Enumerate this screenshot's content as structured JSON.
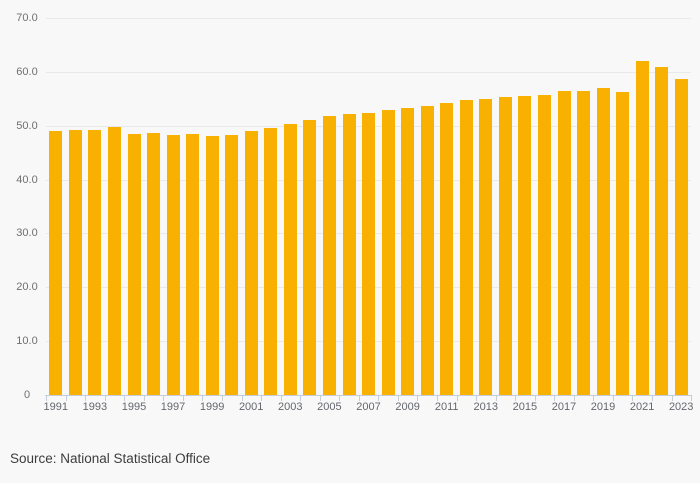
{
  "chart_data": {
    "type": "bar",
    "title": "",
    "xlabel": "",
    "ylabel": "",
    "ylim": [
      0,
      70
    ],
    "grid": true,
    "legend": "none",
    "bar_color": "#f9b101",
    "categories": [
      1991,
      1992,
      1993,
      1994,
      1995,
      1996,
      1997,
      1998,
      1999,
      2000,
      2001,
      2002,
      2003,
      2004,
      2005,
      2006,
      2007,
      2008,
      2009,
      2010,
      2011,
      2012,
      2013,
      2014,
      2015,
      2016,
      2017,
      2018,
      2019,
      2020,
      2021,
      2022,
      2023
    ],
    "values": [
      49.1,
      49.2,
      49.2,
      49.8,
      48.5,
      48.7,
      48.3,
      48.4,
      48.1,
      48.2,
      49.0,
      49.5,
      50.4,
      51.1,
      51.8,
      52.2,
      52.4,
      52.9,
      53.3,
      53.7,
      54.3,
      54.7,
      55.0,
      55.3,
      55.5,
      55.7,
      56.4,
      56.5,
      57.0,
      56.3,
      62.0,
      60.9,
      58.6
    ],
    "yticks": [
      {
        "value": 0,
        "label": "0"
      },
      {
        "value": 10,
        "label": "10.0"
      },
      {
        "value": 20,
        "label": "20.0"
      },
      {
        "value": 30,
        "label": "30.0"
      },
      {
        "value": 40,
        "label": "40.0"
      },
      {
        "value": 50,
        "label": "50.0"
      },
      {
        "value": 60,
        "label": "60.0"
      },
      {
        "value": 70,
        "label": "70.0"
      }
    ],
    "xtick_labels": [
      "1991",
      "1993",
      "1995",
      "1997",
      "1999",
      "2001",
      "2003",
      "2005",
      "2007",
      "2009",
      "2011",
      "2013",
      "2015",
      "2017",
      "2019",
      "2021",
      "2023"
    ]
  },
  "footer": {
    "source_label": "Source: National Statistical Office"
  },
  "colors": {
    "background": "#f8f8f8",
    "bar": "#f9b101",
    "gridline": "#e9e9e9",
    "axis": "#c6cdda",
    "y_tick_text": "#6f6f6f",
    "x_tick_text": "#64676d",
    "source_text": "#3d3d3d"
  }
}
